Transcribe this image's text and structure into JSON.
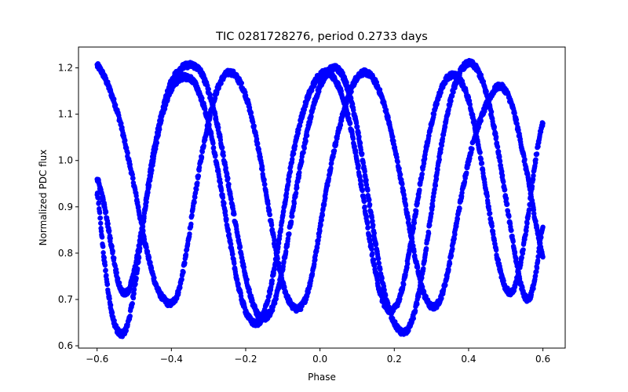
{
  "chart_data": {
    "type": "scatter",
    "title": "TIC 0281728276, period 0.2733 days",
    "xlabel": "Phase",
    "ylabel": "Normalized PDC flux",
    "xlim": [
      -0.65,
      0.66
    ],
    "ylim": [
      0.595,
      1.245
    ],
    "xticks": [
      -0.6,
      -0.4,
      -0.2,
      0.0,
      0.2,
      0.4,
      0.6
    ],
    "xtick_labels": [
      "−0.6",
      "−0.4",
      "−0.2",
      "0.0",
      "0.2",
      "0.4",
      "0.6"
    ],
    "yticks": [
      0.6,
      0.7,
      0.8,
      0.9,
      1.0,
      1.1,
      1.2
    ],
    "ytick_labels": [
      "0.6",
      "0.7",
      "0.8",
      "0.9",
      "1.0",
      "1.1",
      "1.2"
    ],
    "grid": false,
    "marker_color": "#0000ff",
    "series": [
      {
        "x": [
          -0.6,
          -0.58,
          -0.56,
          -0.54,
          -0.52,
          -0.5,
          -0.48,
          -0.46,
          -0.44,
          -0.42,
          -0.4,
          -0.38,
          -0.36,
          -0.34,
          -0.32,
          -0.3,
          -0.28,
          -0.26,
          -0.24,
          -0.22,
          -0.2,
          -0.18,
          -0.16,
          -0.14,
          -0.12,
          -0.1,
          -0.08,
          -0.06,
          -0.04,
          -0.02,
          0.0,
          0.02,
          0.04,
          0.06,
          0.08,
          0.1,
          0.12,
          0.14,
          0.16,
          0.18,
          0.2,
          0.22,
          0.24,
          0.26,
          0.28,
          0.3,
          0.32,
          0.34,
          0.36,
          0.38,
          0.4,
          0.42,
          0.44,
          0.46,
          0.48,
          0.5,
          0.52,
          0.54,
          0.56,
          0.58,
          0.6
        ],
        "y": [
          1.205,
          1.18,
          1.14,
          1.09,
          1.02,
          0.945,
          0.86,
          0.785,
          0.728,
          0.7,
          0.692,
          0.72,
          0.8,
          0.905,
          1.005,
          1.085,
          1.145,
          1.18,
          1.19,
          1.175,
          1.14,
          1.08,
          1.0,
          0.905,
          0.81,
          0.735,
          0.692,
          0.68,
          0.7,
          0.76,
          0.855,
          0.95,
          1.03,
          1.095,
          1.145,
          1.18,
          1.19,
          1.18,
          1.15,
          1.1,
          1.03,
          0.95,
          0.86,
          0.775,
          0.712,
          0.685,
          0.695,
          0.745,
          0.83,
          0.92,
          1.0,
          1.06,
          1.105,
          1.14,
          1.16,
          1.15,
          1.11,
          1.04,
          0.96,
          0.87,
          0.795
        ]
      },
      {
        "x": [
          -0.6,
          -0.58,
          -0.56,
          -0.54,
          -0.52,
          -0.5,
          -0.48,
          -0.46,
          -0.44,
          -0.42,
          -0.4,
          -0.38,
          -0.36,
          -0.34,
          -0.32,
          -0.3,
          -0.28,
          -0.26,
          -0.24,
          -0.22,
          -0.2,
          -0.18,
          -0.16,
          -0.14,
          -0.12,
          -0.1,
          -0.08,
          -0.06,
          -0.04,
          -0.02,
          0.0,
          0.02,
          0.04,
          0.06,
          0.08,
          0.1,
          0.12,
          0.14,
          0.16,
          0.18,
          0.2,
          0.22,
          0.24,
          0.26,
          0.28,
          0.3,
          0.32,
          0.34,
          0.36,
          0.38,
          0.4,
          0.42,
          0.44,
          0.46,
          0.48,
          0.5,
          0.52,
          0.54,
          0.56,
          0.58,
          0.6
        ],
        "y": [
          0.93,
          0.78,
          0.67,
          0.628,
          0.64,
          0.72,
          0.84,
          0.96,
          1.05,
          1.12,
          1.17,
          1.195,
          1.205,
          1.205,
          1.19,
          1.15,
          1.09,
          1.01,
          0.92,
          0.83,
          0.75,
          0.69,
          0.66,
          0.665,
          0.7,
          0.77,
          0.86,
          0.955,
          1.04,
          1.11,
          1.16,
          1.19,
          1.2,
          1.185,
          1.14,
          1.07,
          0.975,
          0.87,
          0.77,
          0.695,
          0.65,
          0.63,
          0.64,
          0.69,
          0.78,
          0.89,
          1.0,
          1.09,
          1.155,
          1.195,
          1.21,
          1.2,
          1.165,
          1.105,
          1.02,
          0.92,
          0.82,
          0.735,
          0.7,
          0.75,
          0.86
        ]
      },
      {
        "x": [
          -0.6,
          -0.58,
          -0.56,
          -0.54,
          -0.52,
          -0.5,
          -0.48,
          -0.46,
          -0.44,
          -0.42,
          -0.4,
          -0.38,
          -0.36,
          -0.34,
          -0.32,
          -0.3,
          -0.28,
          -0.26,
          -0.24,
          -0.22,
          -0.2,
          -0.18,
          -0.16,
          -0.14,
          -0.12,
          -0.1,
          -0.08,
          -0.06,
          -0.04,
          -0.02,
          0.0,
          0.02,
          0.04,
          0.06,
          0.08,
          0.1,
          0.12,
          0.14,
          0.16,
          0.18,
          0.2,
          0.22,
          0.24,
          0.26,
          0.28,
          0.3,
          0.32,
          0.34,
          0.36,
          0.38,
          0.4,
          0.42,
          0.44,
          0.46,
          0.48,
          0.5,
          0.52,
          0.54,
          0.56,
          0.58,
          0.6
        ],
        "y": [
          0.96,
          0.9,
          0.81,
          0.73,
          0.715,
          0.76,
          0.85,
          0.95,
          1.04,
          1.11,
          1.155,
          1.175,
          1.18,
          1.17,
          1.135,
          1.08,
          1.0,
          0.91,
          0.815,
          0.73,
          0.675,
          0.65,
          0.655,
          0.7,
          0.78,
          0.88,
          0.98,
          1.06,
          1.12,
          1.16,
          1.185,
          1.19,
          1.175,
          1.14,
          1.08,
          1.0,
          0.9,
          0.8,
          0.72,
          0.68,
          0.68,
          0.72,
          0.8,
          0.9,
          1.0,
          1.08,
          1.14,
          1.175,
          1.185,
          1.17,
          1.13,
          1.06,
          0.97,
          0.87,
          0.78,
          0.725,
          0.72,
          0.78,
          0.88,
          1.0,
          1.08
        ]
      }
    ]
  }
}
